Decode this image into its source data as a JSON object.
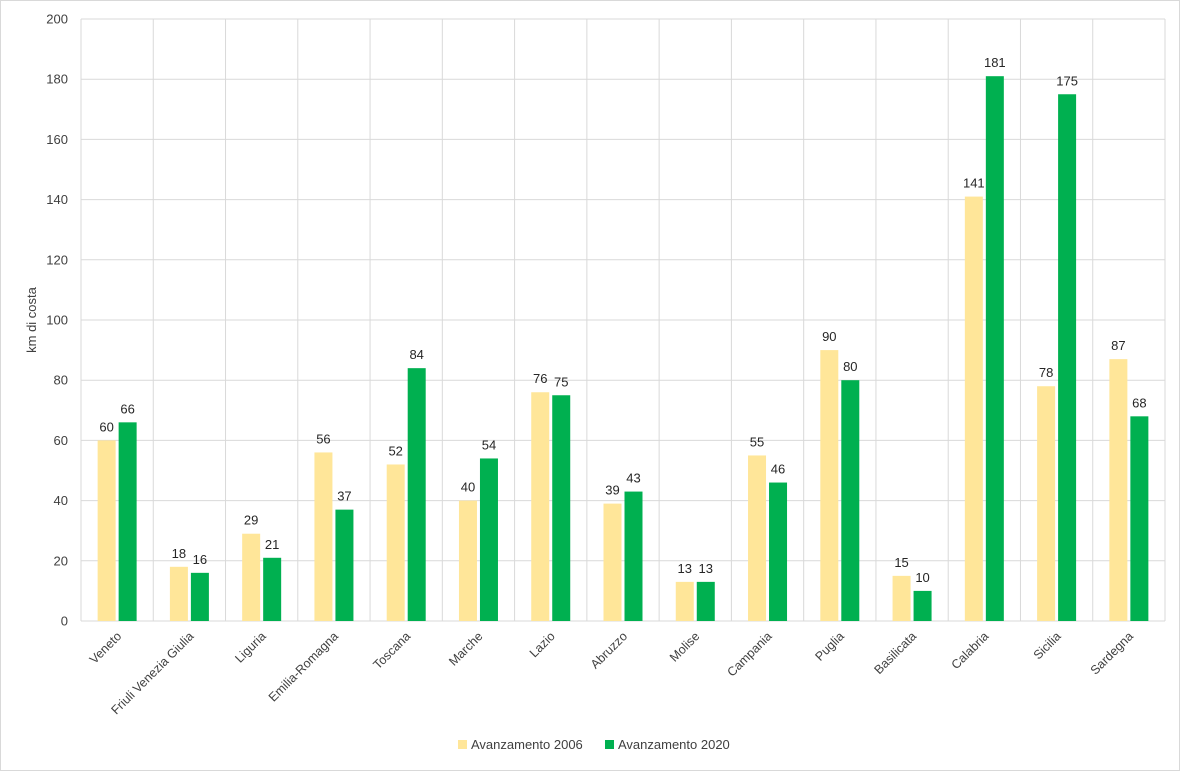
{
  "chart_data": {
    "type": "bar",
    "title": "",
    "xlabel": "",
    "ylabel": "km di costa",
    "ylim": [
      0,
      200
    ],
    "y_ticks": [
      0,
      20,
      40,
      60,
      80,
      100,
      120,
      140,
      160,
      180,
      200
    ],
    "grid": true,
    "legend_position": "bottom",
    "categories": [
      "Veneto",
      "Friuli Venezia Giulia",
      "Liguria",
      "Emilia-Romagna",
      "Toscana",
      "Marche",
      "Lazio",
      "Abruzzo",
      "Molise",
      "Campania",
      "Puglia",
      "Basilicata",
      "Calabria",
      "Sicilia",
      "Sardegna"
    ],
    "series": [
      {
        "name": "Avanzamento 2006",
        "color": "#ffe699",
        "values": [
          60,
          18,
          29,
          56,
          52,
          40,
          76,
          39,
          13,
          55,
          90,
          15,
          141,
          78,
          87
        ]
      },
      {
        "name": "Avanzamento 2020",
        "color": "#00b050",
        "values": [
          66,
          16,
          21,
          37,
          84,
          54,
          75,
          43,
          13,
          46,
          80,
          10,
          181,
          175,
          68
        ]
      }
    ]
  }
}
